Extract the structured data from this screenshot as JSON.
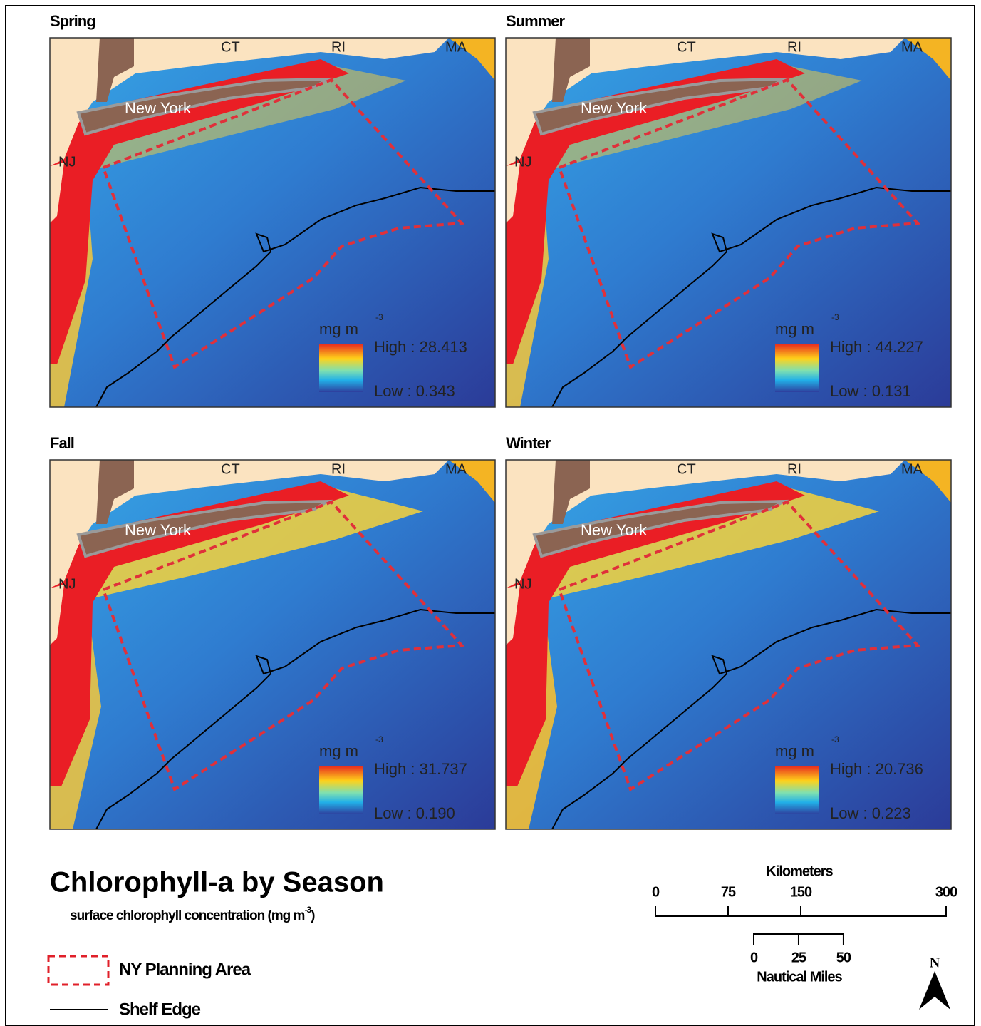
{
  "panels": [
    {
      "title": "Spring",
      "ct": "CT",
      "ri": "RI",
      "ma": "MA",
      "ny": "New York",
      "nj": "NJ",
      "unit": "mg m",
      "unit_exp": "-3",
      "high": "High : 28.413",
      "low": "Low : 0.343"
    },
    {
      "title": "Summer",
      "ct": "CT",
      "ri": "RI",
      "ma": "MA",
      "ny": "New York",
      "nj": "NJ",
      "unit": "mg m",
      "unit_exp": "-3",
      "high": "High : 44.227",
      "low": "Low : 0.131"
    },
    {
      "title": "Fall",
      "ct": "CT",
      "ri": "RI",
      "ma": "MA",
      "ny": "New York",
      "nj": "NJ",
      "unit": "mg m",
      "unit_exp": "-3",
      "high": "High : 31.737",
      "low": "Low : 0.190"
    },
    {
      "title": "Winter",
      "ct": "CT",
      "ri": "RI",
      "ma": "MA",
      "ny": "New York",
      "nj": "NJ",
      "unit": "mg m",
      "unit_exp": "-3",
      "high": "High : 20.736",
      "low": "Low : 0.223"
    }
  ],
  "title": "Chlorophyll-a by Season",
  "subtitle": {
    "text": "surface chlorophyll concentration (mg m",
    "exp": "-3",
    "close": ")"
  },
  "legend": {
    "planning": "NY Planning Area",
    "shelf": "Shelf Edge"
  },
  "scale": {
    "km_title": "Kilometers",
    "km_ticks": [
      0,
      75,
      150,
      300
    ],
    "nmi_ticks": [
      0,
      25,
      50
    ],
    "nmi_title": "Nautical Miles",
    "north": "N"
  }
}
